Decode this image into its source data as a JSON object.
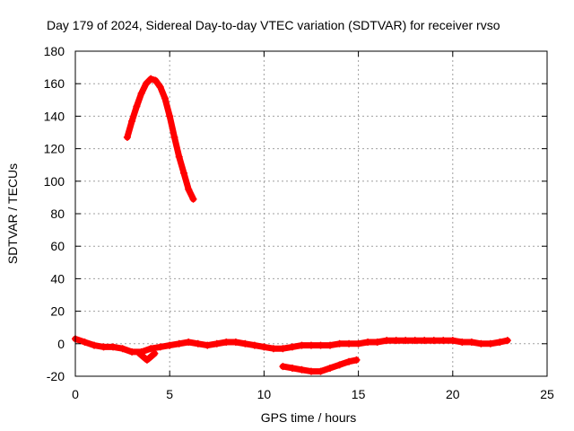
{
  "chart_data": {
    "type": "scatter",
    "title": "Day 179 of 2024, Sidereal Day-to-day VTEC variation (SDTVAR) for receiver rvso",
    "xlabel": "GPS time / hours",
    "ylabel": "SDTVAR / TECUs",
    "xlim": [
      0,
      25
    ],
    "ylim": [
      -20,
      180
    ],
    "xticks": [
      0,
      5,
      10,
      15,
      20,
      25
    ],
    "yticks": [
      -20,
      0,
      20,
      40,
      60,
      80,
      100,
      120,
      140,
      160,
      180
    ],
    "xtick_labels": [
      "0",
      "5",
      "10",
      "15",
      "20",
      "25"
    ],
    "ytick_labels": [
      "-20",
      "0",
      "20",
      "40",
      "60",
      "80",
      "100",
      "120",
      "140",
      "160",
      "180"
    ],
    "grid": true,
    "marker": "+",
    "series": [
      {
        "name": "arc-high",
        "color": "#ff0000",
        "x": [
          2.75,
          3.0,
          3.25,
          3.5,
          3.75,
          4.0,
          4.25,
          4.5,
          4.75,
          5.0,
          5.25,
          5.5,
          5.75,
          6.0,
          6.25
        ],
        "y": [
          127,
          137,
          146,
          154,
          160,
          163,
          162,
          158,
          151,
          140,
          127,
          115,
          105,
          95,
          89
        ]
      },
      {
        "name": "arc-main",
        "color": "#ff0000",
        "x": [
          0.0,
          0.5,
          1.0,
          1.5,
          2.0,
          2.5,
          3.0,
          3.5,
          4.0,
          4.5,
          5.0,
          5.5,
          6.0,
          6.5,
          7.0,
          7.5,
          8.0,
          8.5,
          9.0,
          9.5,
          10.0,
          10.5,
          11.0,
          11.5,
          12.0,
          12.5,
          13.0,
          13.5,
          14.0,
          14.5,
          15.0,
          15.5,
          16.0,
          16.5,
          17.0,
          17.5,
          18.0,
          18.5,
          19.0,
          19.5,
          20.0,
          20.5,
          21.0,
          21.5,
          22.0,
          22.5,
          22.9
        ],
        "y": [
          3,
          1,
          -1,
          -2,
          -2,
          -3,
          -5,
          -5,
          -3,
          -2,
          -1,
          0,
          1,
          0,
          -1,
          0,
          1,
          1,
          0,
          -1,
          -2,
          -3,
          -3,
          -2,
          -1,
          -1,
          -1,
          -1,
          0,
          0,
          0,
          1,
          1,
          2,
          2,
          2,
          2,
          2,
          2,
          2,
          2,
          1,
          1,
          0,
          0,
          1,
          2
        ]
      },
      {
        "name": "arc-dip",
        "color": "#ff0000",
        "x": [
          3.4,
          3.6,
          3.8,
          4.0,
          4.2
        ],
        "y": [
          -6,
          -8,
          -10,
          -8,
          -6
        ]
      },
      {
        "name": "arc-low",
        "color": "#ff0000",
        "x": [
          11.0,
          11.5,
          12.0,
          12.5,
          13.0,
          13.5,
          14.0,
          14.5,
          14.9
        ],
        "y": [
          -14,
          -15,
          -16,
          -17,
          -17,
          -15,
          -13,
          -11,
          -10
        ]
      }
    ]
  }
}
